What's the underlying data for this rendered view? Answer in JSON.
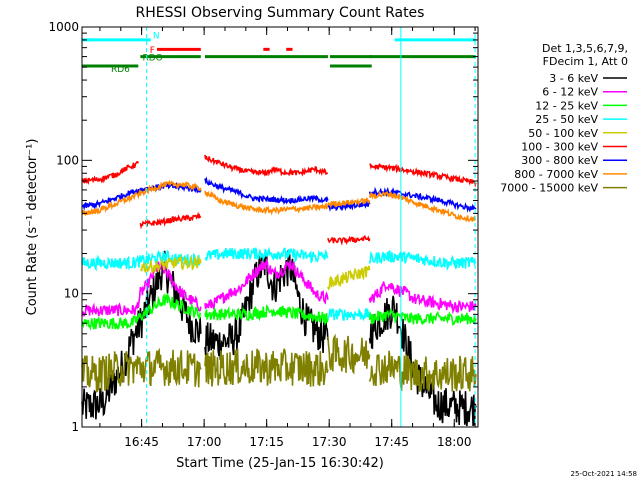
{
  "chart_data": {
    "type": "line",
    "title": "RHESSI Observing Summary Count Rates",
    "xlabel": "Start Time (25-Jan-15 16:30:42)",
    "ylabel": "Count Rate (s⁻¹ detector⁻¹)",
    "y_scale": "log",
    "ylim": [
      1,
      1000
    ],
    "xlim_minutes": [
      0,
      95
    ],
    "x_ticks": [
      {
        "min": 14.3,
        "label": "16:45"
      },
      {
        "min": 29.3,
        "label": "17:00"
      },
      {
        "min": 44.3,
        "label": "17:15"
      },
      {
        "min": 59.3,
        "label": "17:30"
      },
      {
        "min": 74.3,
        "label": "17:45"
      },
      {
        "min": 89.3,
        "label": "18:00"
      }
    ],
    "y_ticks": [
      {
        "value": 1,
        "label": "1"
      },
      {
        "value": 10,
        "label": "10"
      },
      {
        "value": 100,
        "label": "100"
      },
      {
        "value": 1000,
        "label": "1000"
      }
    ],
    "grid": false,
    "legend_position": "right",
    "legend_header": [
      "Det 1,3,5,6,7,9,",
      "FDecim 1, Att 0"
    ],
    "series": [
      {
        "name": "3 - 6 keV",
        "color": "#000000",
        "segments": [
          {
            "x": [
              0,
              5,
              10,
              12,
              14,
              17,
              19.5,
              22,
              24,
              26,
              28.5
            ],
            "y": [
              1.4,
              1.5,
              3,
              4.5,
              6,
              10,
              16,
              11,
              8,
              6,
              5
            ]
          },
          {
            "x": [
              29.5,
              33,
              36,
              38,
              40,
              42,
              44,
              46,
              48,
              50,
              52,
              54,
              57,
              59
            ],
            "y": [
              4.5,
              4.3,
              4.5,
              5.5,
              9,
              14,
              17,
              11,
              14,
              16,
              9,
              6,
              5,
              4.5
            ]
          },
          {
            "x": [
              69,
              71,
              73,
              75,
              77,
              80,
              85,
              90,
              94.5
            ],
            "y": [
              5,
              6,
              7,
              8,
              5,
              2.5,
              1.5,
              1.4,
              1.4
            ]
          }
        ]
      },
      {
        "name": "6 - 12 keV",
        "color": "#ff00ff",
        "segments": [
          {
            "x": [
              0,
              5,
              10,
              13,
              14,
              16,
              18,
              20,
              22,
              24,
              26,
              28.5
            ],
            "y": [
              7.5,
              7.5,
              7.5,
              7.5,
              10,
              12,
              16,
              15,
              12,
              10,
              9,
              8
            ]
          },
          {
            "x": [
              29.5,
              32,
              35,
              38,
              40,
              42,
              44,
              46,
              48,
              50,
              52,
              54,
              56,
              59
            ],
            "y": [
              8,
              8.5,
              10,
              11,
              13,
              15,
              17,
              14,
              15,
              17,
              14,
              12,
              10,
              9
            ]
          },
          {
            "x": [
              69,
              71,
              73,
              75,
              78,
              80,
              85,
              90,
              94.5
            ],
            "y": [
              9,
              10,
              12,
              11,
              10,
              9,
              8.5,
              8,
              8
            ]
          }
        ]
      },
      {
        "name": "12 - 25 keV",
        "color": "#00ff00",
        "segments": [
          {
            "x": [
              0,
              6,
              12,
              16,
              20,
              24,
              28.5
            ],
            "y": [
              6,
              6,
              6,
              7.5,
              9,
              8,
              7
            ]
          },
          {
            "x": [
              29.5,
              34,
              40,
              46,
              52,
              59
            ],
            "y": [
              7,
              7,
              7,
              7.5,
              7,
              6.5
            ]
          },
          {
            "x": [
              69,
              74,
              78,
              84,
              90,
              94.5
            ],
            "y": [
              6.5,
              7,
              6.5,
              6.5,
              6.5,
              6.5
            ]
          }
        ]
      },
      {
        "name": "25 - 50 keV",
        "color": "#00ffff",
        "segments": [
          {
            "x": [
              0,
              6,
              12,
              16,
              20,
              24,
              28.5
            ],
            "y": [
              17,
              17,
              17,
              18,
              19,
              18,
              18
            ]
          },
          {
            "x": [
              29.5,
              35,
              42,
              48,
              55,
              59
            ],
            "y": [
              19,
              20,
              20,
              20,
              19,
              19
            ]
          },
          {
            "x": [
              59,
              63,
              69
            ],
            "y": [
              7,
              7,
              7
            ]
          },
          {
            "x": [
              69,
              72,
              76,
              82,
              88,
              94.5
            ],
            "y": [
              18,
              19,
              19,
              18,
              17,
              17
            ]
          }
        ]
      },
      {
        "name": "50 - 100 keV",
        "color": "#cccc00",
        "segments": [
          {
            "x": [
              14,
              18,
              22,
              28.5
            ],
            "y": [
              16,
              16,
              17,
              17
            ]
          },
          {
            "x": [
              59,
              63,
              69
            ],
            "y": [
              12,
              13,
              15
            ]
          }
        ]
      },
      {
        "name": "100 - 300 keV",
        "color": "#ff0000",
        "segments": [
          {
            "x": [
              0,
              4,
              8,
              11,
              13.5
            ],
            "y": [
              70,
              72,
              78,
              88,
              95
            ]
          },
          {
            "x": [
              14,
              18,
              22,
              26,
              28.5
            ],
            "y": [
              33,
              34,
              36,
              37,
              38
            ]
          },
          {
            "x": [
              29.5,
              32,
              36,
              40,
              44,
              46,
              48,
              52,
              56,
              59
            ],
            "y": [
              105,
              98,
              88,
              82,
              80,
              86,
              82,
              80,
              86,
              80
            ]
          },
          {
            "x": [
              59,
              63,
              69
            ],
            "y": [
              25,
              25,
              26
            ]
          },
          {
            "x": [
              69,
              74,
              80,
              86,
              90,
              94.5
            ],
            "y": [
              90,
              88,
              82,
              76,
              72,
              68
            ]
          }
        ]
      },
      {
        "name": "300 - 800 keV",
        "color": "#0000ff",
        "segments": [
          {
            "x": [
              0,
              4,
              8,
              12,
              16,
              20,
              24,
              28.5
            ],
            "y": [
              45,
              47,
              52,
              58,
              62,
              64,
              63,
              60
            ]
          },
          {
            "x": [
              29.5,
              33,
              37,
              41,
              45,
              50,
              55,
              59
            ],
            "y": [
              70,
              63,
              58,
              52,
              51,
              50,
              52,
              50
            ]
          },
          {
            "x": [
              59,
              63,
              69
            ],
            "y": [
              44,
              45,
              47
            ]
          },
          {
            "x": [
              69,
              74,
              80,
              86,
              90,
              94.5
            ],
            "y": [
              58,
              58,
              54,
              50,
              46,
              43
            ]
          }
        ]
      },
      {
        "name": "800 - 7000 keV",
        "color": "#ff8800",
        "segments": [
          {
            "x": [
              0,
              4,
              8,
              12,
              16,
              20,
              24,
              28.5
            ],
            "y": [
              40,
              42,
              47,
              53,
              60,
              66,
              66,
              62
            ]
          },
          {
            "x": [
              29.5,
              33,
              37,
              41,
              45,
              50,
              55,
              59
            ],
            "y": [
              58,
              50,
              46,
              43,
              42,
              43,
              44,
              45
            ]
          },
          {
            "x": [
              59,
              63,
              69
            ],
            "y": [
              47,
              48,
              50
            ]
          },
          {
            "x": [
              69,
              74,
              80,
              86,
              90,
              94.5
            ],
            "y": [
              54,
              56,
              48,
              42,
              38,
              36
            ]
          }
        ]
      },
      {
        "name": "7000 - 15000 keV",
        "color": "#808000",
        "segments": [
          {
            "x": [
              0,
              4,
              8,
              12,
              16,
              20,
              24,
              28.5
            ],
            "y": [
              2.5,
              2.5,
              2.7,
              2.8,
              2.8,
              2.8,
              2.8,
              2.7
            ]
          },
          {
            "x": [
              29.5,
              34,
              40,
              46,
              52,
              59
            ],
            "y": [
              2.7,
              2.8,
              2.8,
              2.8,
              2.8,
              2.7
            ]
          },
          {
            "x": [
              59,
              63,
              69
            ],
            "y": [
              3.5,
              3.5,
              3.5
            ]
          },
          {
            "x": [
              69,
              74,
              80,
              86,
              90,
              94.5
            ],
            "y": [
              2.8,
              2.8,
              2.5,
              2.5,
              2.5,
              2.5
            ]
          }
        ]
      }
    ],
    "flag_bars": [
      {
        "name": "N",
        "color": "#00ffff",
        "y": 800,
        "segments": [
          [
            0,
            16.5
          ],
          [
            75,
            94.5
          ]
        ]
      },
      {
        "name": "F",
        "color": "#ff0000",
        "y": 680,
        "segments": [
          [
            18,
            28.5
          ],
          [
            43.5,
            45
          ],
          [
            49,
            50.5
          ]
        ]
      },
      {
        "name": "RDO",
        "color": "#008000",
        "y": 600,
        "segments": [
          [
            14,
            28.5
          ],
          [
            29.5,
            59
          ],
          [
            59.5,
            69.5
          ],
          [
            69,
            94.5
          ]
        ]
      },
      {
        "name": "RD6",
        "color": "#008000",
        "y": 510,
        "segments": [
          [
            0,
            13.5
          ],
          [
            59.5,
            69.5
          ]
        ]
      }
    ],
    "vertical_markers": [
      {
        "x": 15.5,
        "color": "#00ffff",
        "style": "dashed"
      },
      {
        "x": 76.5,
        "color": "#00ffff",
        "style": "solid"
      },
      {
        "x": 94.3,
        "color": "#00ffff",
        "style": "dashed"
      }
    ],
    "footer_date": "25-Oct-2021 14:58"
  }
}
